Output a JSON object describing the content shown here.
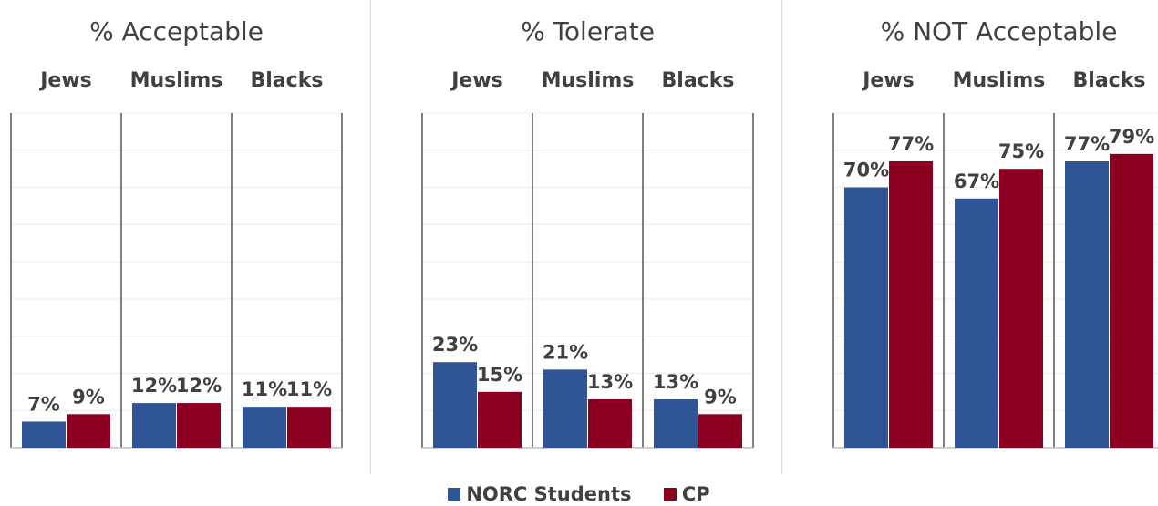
{
  "chart_data": [
    {
      "type": "bar",
      "title": "% Acceptable",
      "categories": [
        "Jews",
        "Muslims",
        "Blacks"
      ],
      "series": [
        {
          "name": "NORC Students",
          "values": [
            7,
            12,
            11
          ]
        },
        {
          "name": "CP",
          "values": [
            9,
            12,
            11
          ]
        }
      ],
      "ylim": [
        0,
        90
      ],
      "grid": true
    },
    {
      "type": "bar",
      "title": "% Tolerate",
      "categories": [
        "Jews",
        "Muslims",
        "Blacks"
      ],
      "series": [
        {
          "name": "NORC Students",
          "values": [
            23,
            21,
            13
          ]
        },
        {
          "name": "CP",
          "values": [
            15,
            13,
            9
          ]
        }
      ],
      "ylim": [
        0,
        90
      ],
      "grid": true
    },
    {
      "type": "bar",
      "title": "% NOT Acceptable",
      "categories": [
        "Jews",
        "Muslims",
        "Blacks"
      ],
      "series": [
        {
          "name": "NORC Students",
          "values": [
            70,
            67,
            77
          ]
        },
        {
          "name": "CP",
          "values": [
            77,
            75,
            79
          ]
        }
      ],
      "ylim": [
        0,
        90
      ],
      "grid": true
    }
  ],
  "legend": {
    "position": "bottom",
    "items": [
      {
        "label": "NORC Students",
        "color": "#2f5597"
      },
      {
        "label": "CP",
        "color": "#8b0020"
      }
    ]
  },
  "colors": {
    "series1": "#2f5597",
    "series2": "#8b0020",
    "grid": "#ececec",
    "divider": "#7f7f7f",
    "label": "#404040"
  }
}
